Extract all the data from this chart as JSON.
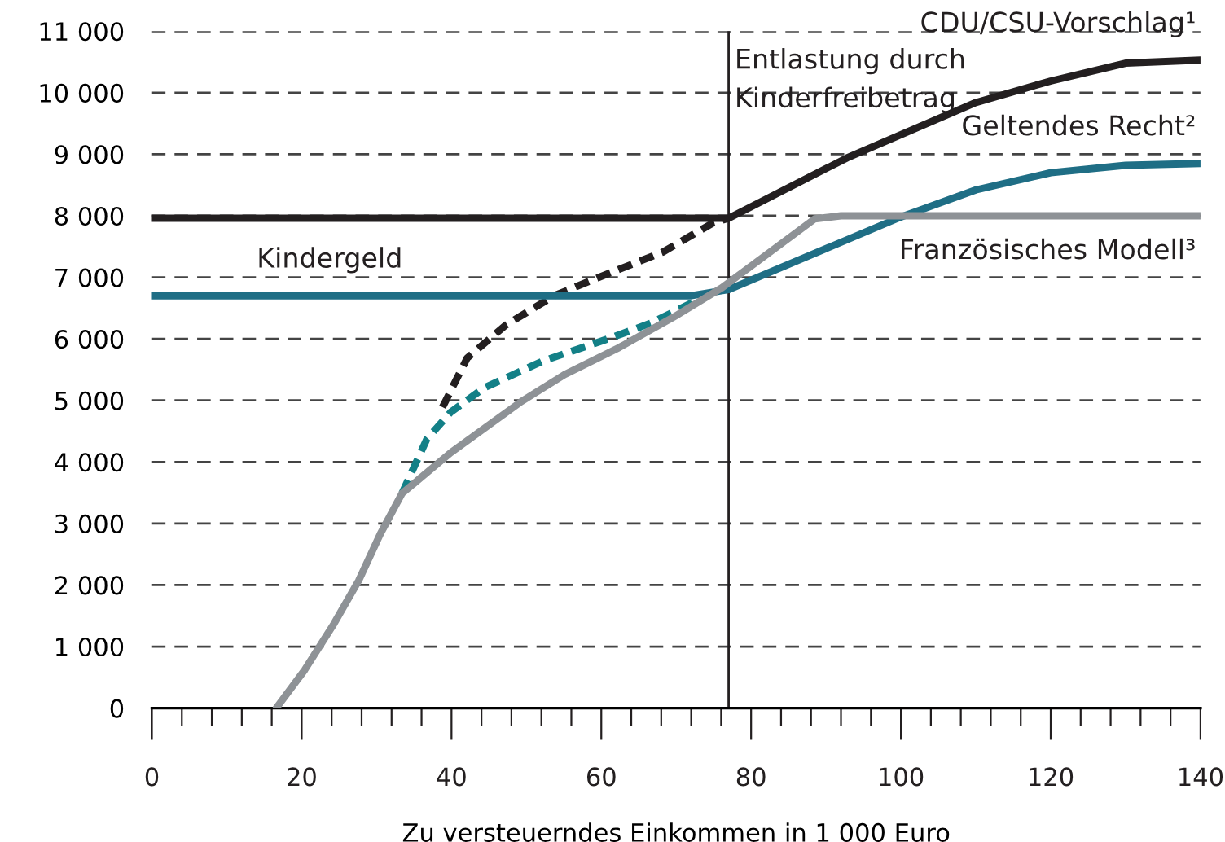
{
  "chart_data": {
    "type": "line",
    "xlabel": "Zu versteuerndes Einkommen in 1 000 Euro",
    "xlim": [
      0,
      140
    ],
    "xticks": [
      0,
      {
        "value": 4,
        "label": null
      },
      {
        "value": 8,
        "label": null
      },
      {
        "value": 12,
        "label": null
      },
      {
        "value": 16,
        "label": null
      },
      20,
      {
        "value": 24,
        "label": null
      },
      {
        "value": 28,
        "label": null
      },
      {
        "value": 32,
        "label": null
      },
      {
        "value": 36,
        "label": null
      },
      40,
      {
        "value": 44,
        "label": null
      },
      {
        "value": 48,
        "label": null
      },
      {
        "value": 52,
        "label": null
      },
      {
        "value": 56,
        "label": null
      },
      60,
      {
        "value": 64,
        "label": null
      },
      {
        "value": 68,
        "label": null
      },
      {
        "value": 72,
        "label": null
      },
      {
        "value": 76,
        "label": null
      },
      80,
      {
        "value": 84,
        "label": null
      },
      {
        "value": 88,
        "label": null
      },
      {
        "value": 92,
        "label": null
      },
      {
        "value": 96,
        "label": null
      },
      100,
      {
        "value": 104,
        "label": null
      },
      {
        "value": 108,
        "label": null
      },
      {
        "value": 112,
        "label": null
      },
      {
        "value": 116,
        "label": null
      },
      120,
      {
        "value": 124,
        "label": null
      },
      {
        "value": 128,
        "label": null
      },
      {
        "value": 132,
        "label": null
      },
      {
        "value": 136,
        "label": null
      },
      140
    ],
    "ylim": [
      0,
      11000
    ],
    "yticks": [
      0,
      {
        "value": 1000,
        "label": "1 000"
      },
      {
        "value": 2000,
        "label": "2 000"
      },
      {
        "value": 3000,
        "label": "3 000"
      },
      {
        "value": 4000,
        "label": "4 000"
      },
      {
        "value": 5000,
        "label": "5 000"
      },
      {
        "value": 6000,
        "label": "6 000"
      },
      {
        "value": 7000,
        "label": "7 000"
      },
      {
        "value": 8000,
        "label": "8 000"
      },
      {
        "value": 9000,
        "label": "9 000"
      },
      {
        "value": 10000,
        "label": "10 000"
      },
      {
        "value": 11000,
        "label": "11 000"
      }
    ],
    "grid": "y",
    "legend": false,
    "marker": "none",
    "series": [
      {
        "name": "CDU/CSU-Vorschlag¹",
        "color": "#231f20",
        "line_style": "solid",
        "x": [
          0,
          77,
          92.8,
          110,
          120,
          130,
          140
        ],
        "values": [
          7960,
          7960,
          8940,
          9840,
          10190,
          10480,
          10530
        ]
      },
      {
        "color": "#231f20",
        "line_style": "dashed",
        "x": [
          38.8,
          42.1,
          47.2,
          53.7,
          60.9,
          68.2,
          75,
          77
        ],
        "values": [
          4890,
          5690,
          6220,
          6700,
          7060,
          7410,
          7890,
          7960
        ]
      },
      {
        "name": "Geltendes Recht²",
        "color": "#1f6e85",
        "line_style": "solid",
        "x": [
          0,
          72,
          77,
          100,
          110,
          120,
          130,
          140
        ],
        "values": [
          6700,
          6700,
          6800,
          7980,
          8420,
          8700,
          8820,
          8850
        ]
      },
      {
        "color": "#138087",
        "line_style": "dashed",
        "x": [
          33.4,
          36.7,
          39.9,
          44.3,
          52.2,
          60.9,
          66.7,
          72.5
        ],
        "values": [
          3490,
          4370,
          4810,
          5200,
          5640,
          6000,
          6260,
          6610
        ]
      },
      {
        "name": "Französisches Modell³",
        "color": "#8e9296",
        "line_style": "solid",
        "x": [
          16.6,
          20.4,
          24.3,
          27.6,
          30.5,
          33.4,
          39.9,
          49.3,
          55.1,
          62.4,
          69.6,
          76.1,
          88.5,
          92,
          140
        ],
        "values": [
          0,
          620,
          1370,
          2070,
          2830,
          3490,
          4150,
          4980,
          5420,
          5860,
          6350,
          6830,
          7950,
          8000,
          8000
        ]
      }
    ],
    "ref_lines": [
      {
        "axis": "x",
        "value": 77,
        "label": "Entlastung durch\nKinderfreibetrag",
        "color": "#231f20"
      }
    ],
    "annotations": [
      {
        "text": "Kindergeld",
        "x": 14,
        "y": 6700
      }
    ]
  }
}
